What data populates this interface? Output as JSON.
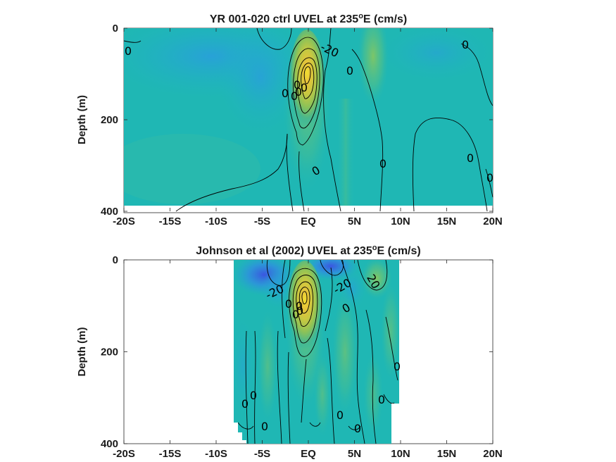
{
  "chart_data": [
    {
      "type": "heatmap",
      "title": "YR 001-020 ctrl UVEL at 235",
      "title_sup": "o",
      "title_tail": "E (cm/s)",
      "ylabel": "Depth (m)",
      "xlim": [
        -20,
        20
      ],
      "ylim": [
        0,
        400
      ],
      "y_reversed": true,
      "x_ticks": [
        -20,
        -15,
        -10,
        -5,
        0,
        5,
        10,
        15,
        20
      ],
      "x_tick_labels": [
        "-20S",
        "-15S",
        "-10S",
        "-5S",
        "EQ",
        "5N",
        "10N",
        "15N",
        "20N"
      ],
      "y_ticks": [
        0,
        200,
        400
      ],
      "y_tick_labels": [
        "0",
        "200",
        "400"
      ],
      "data_extent": {
        "lat": [
          -20,
          20
        ],
        "depth": [
          0,
          385
        ]
      },
      "contour_labels": [
        "0",
        "-20",
        "0",
        "0",
        "0",
        "0",
        "0",
        "0",
        "0",
        "0",
        "0",
        "0",
        "0"
      ],
      "features": [
        {
          "name": "equatorial undercurrent core",
          "lat": 0,
          "depth": 90,
          "value": 100
        },
        {
          "name": "south equatorial current",
          "lat": -4,
          "depth": 40,
          "value": -30
        },
        {
          "name": "north equatorial countercurrent",
          "lat": 7,
          "depth": 40,
          "value": 20
        }
      ]
    },
    {
      "type": "heatmap",
      "title": "Johnson et al (2002) UVEL at 235",
      "title_sup": "o",
      "title_tail": "E (cm/s)",
      "ylabel": "Depth (m)",
      "xlim": [
        -20,
        20
      ],
      "ylim": [
        0,
        400
      ],
      "y_reversed": true,
      "x_ticks": [
        -20,
        -15,
        -10,
        -5,
        0,
        5,
        10,
        15,
        20
      ],
      "x_tick_labels": [
        "-20S",
        "-15S",
        "-10S",
        "-5S",
        "EQ",
        "5N",
        "10N",
        "15N",
        "20N"
      ],
      "y_ticks": [
        0,
        200,
        400
      ],
      "y_tick_labels": [
        "0",
        "200",
        "400"
      ],
      "data_extent": {
        "lat": [
          -8,
          10
        ],
        "depth": [
          0,
          400
        ]
      },
      "contour_labels": [
        "-20",
        "-20",
        "20",
        "0",
        "0",
        "0",
        "0",
        "0",
        "0",
        "0",
        "0",
        "0",
        "0",
        "0",
        "0"
      ],
      "features": [
        {
          "name": "equatorial undercurrent core",
          "lat": 0,
          "depth": 90,
          "value": 100
        },
        {
          "name": "south equatorial current",
          "lat": 1.5,
          "depth": 15,
          "value": -40
        },
        {
          "name": "south equatorial current west",
          "lat": -5,
          "depth": 20,
          "value": -30
        },
        {
          "name": "north equatorial countercurrent",
          "lat": 7.5,
          "depth": 20,
          "value": 25
        }
      ]
    }
  ]
}
